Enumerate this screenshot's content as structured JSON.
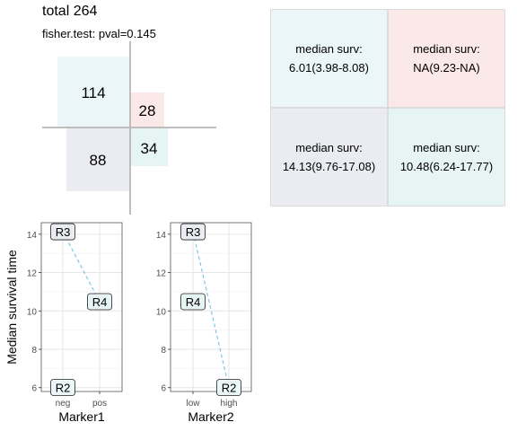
{
  "header": {
    "title": "total 264",
    "subtitle": "fisher.test: pval=0.145"
  },
  "quadrants": {
    "top_left": {
      "count": "114",
      "color": "#eaf6f8"
    },
    "top_right": {
      "count": "28",
      "color": "#fbe9e7"
    },
    "bottom_left": {
      "count": "88",
      "color": "#eaecf1"
    },
    "bottom_right": {
      "count": "34",
      "color": "#e6f4f3"
    }
  },
  "median_table": {
    "top_left": {
      "label": "median surv:",
      "value": "6.01(3.98-8.08)",
      "color": "#eaf6f8"
    },
    "top_right": {
      "label": "median surv:",
      "value": "NA(9.23-NA)",
      "color": "#fbe9e7"
    },
    "bottom_left": {
      "label": "median surv:",
      "value": "14.13(9.76-17.08)",
      "color": "#eaecf1"
    },
    "bottom_right": {
      "label": "median surv:",
      "value": "10.48(6.24-17.77)",
      "color": "#e6f4f3"
    }
  },
  "chart_data": [
    {
      "type": "line",
      "title": "",
      "xlabel": "Marker1",
      "ylabel": "Median survival time",
      "categories": [
        "neg",
        "pos"
      ],
      "ylim": [
        5.8,
        14.6
      ],
      "yticks": [
        6,
        8,
        10,
        12,
        14
      ],
      "segment": {
        "from": {
          "x": "neg",
          "y": 14.13
        },
        "to": {
          "x": "pos",
          "y": 10.48
        },
        "color": "#7ec8e3"
      },
      "labels": [
        {
          "text": "R3",
          "x": "neg",
          "y": 14.13,
          "fill": "#eaecf1"
        },
        {
          "text": "R4",
          "x": "pos",
          "y": 10.48,
          "fill": "#e6f4f3"
        },
        {
          "text": "R2",
          "x": "neg",
          "y": 6.01,
          "fill": "#eaf6f8"
        }
      ]
    },
    {
      "type": "line",
      "title": "",
      "xlabel": "Marker2",
      "ylabel": "",
      "categories": [
        "low",
        "high"
      ],
      "ylim": [
        5.8,
        14.6
      ],
      "yticks": [
        6,
        8,
        10,
        12,
        14
      ],
      "segment": {
        "from": {
          "x": "low",
          "y": 14.13
        },
        "to": {
          "x": "high",
          "y": 6.01
        },
        "color": "#7ec8e3"
      },
      "labels": [
        {
          "text": "R3",
          "x": "low",
          "y": 14.13,
          "fill": "#eaecf1"
        },
        {
          "text": "R4",
          "x": "low",
          "y": 10.48,
          "fill": "#e6f4f3"
        },
        {
          "text": "R2",
          "x": "high",
          "y": 6.01,
          "fill": "#eaf6f8"
        }
      ]
    }
  ]
}
